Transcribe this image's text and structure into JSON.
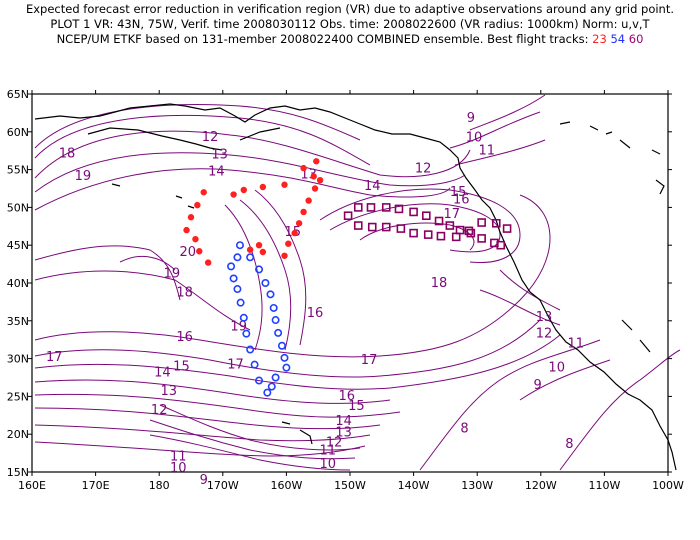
{
  "header": {
    "line1": "Expected forecast error reduction in verification region (VR) due to adaptive observations around any grid point.",
    "line2": "PLOT 1 VR: 43N, 75W, Verif. time 2008030112 Obs. time: 2008022600 (VR radius: 1000km) Norm: u,v,T",
    "line3_prefix": "NCEP/UM ETKF based on 131-member 2008022400 COMBINED ensemble.  Best flight tracks: ",
    "track_red": "23",
    "track_blue": "54",
    "track_purple": "60"
  },
  "axes": {
    "lat_labels": [
      "65N",
      "60N",
      "55N",
      "50N",
      "45N",
      "40N",
      "35N",
      "30N",
      "25N",
      "20N",
      "15N"
    ],
    "lon_labels": [
      "160E",
      "170E",
      "180",
      "170W",
      "160W",
      "150W",
      "140W",
      "130W",
      "120W",
      "110W",
      "100W"
    ]
  },
  "contour_labels": [
    {
      "t": "9",
      "x": -131,
      "y": 61.3
    },
    {
      "t": "10",
      "x": -130.5,
      "y": 58.7
    },
    {
      "t": "11",
      "x": -128.5,
      "y": 57.0
    },
    {
      "t": "12",
      "x": -172,
      "y": 58.8
    },
    {
      "t": "12",
      "x": -138.5,
      "y": 54.6
    },
    {
      "t": "13",
      "x": -170.5,
      "y": 56.5
    },
    {
      "t": "13",
      "x": -156.5,
      "y": 53.8
    },
    {
      "t": "14",
      "x": -171,
      "y": 54.2
    },
    {
      "t": "14",
      "x": -146.5,
      "y": 52.3
    },
    {
      "t": "15",
      "x": -133,
      "y": 51.5
    },
    {
      "t": "16",
      "x": -132.5,
      "y": 50.5
    },
    {
      "t": "17",
      "x": -134,
      "y": 48.6
    },
    {
      "t": "18",
      "x": -136,
      "y": 39.5
    },
    {
      "t": "18",
      "x": -176,
      "y": 38.2
    },
    {
      "t": "18",
      "x": 165.5,
      "y": 56.6
    },
    {
      "t": "19",
      "x": 168,
      "y": 53.6
    },
    {
      "t": "19",
      "x": -178,
      "y": 40.7
    },
    {
      "t": "19",
      "x": -167.5,
      "y": 33.7
    },
    {
      "t": "20",
      "x": -175.5,
      "y": 43.6
    },
    {
      "t": "16",
      "x": -176,
      "y": 32.3
    },
    {
      "t": "17",
      "x": 163.5,
      "y": 29.7
    },
    {
      "t": "16",
      "x": -155.5,
      "y": 35.5
    },
    {
      "t": "17",
      "x": -168,
      "y": 28.7
    },
    {
      "t": "15",
      "x": -159,
      "y": 46.2
    },
    {
      "t": "15",
      "x": -176.5,
      "y": 28.4
    },
    {
      "t": "14",
      "x": -179.5,
      "y": 27.6
    },
    {
      "t": "13",
      "x": -178.5,
      "y": 25.2
    },
    {
      "t": "12",
      "x": -180,
      "y": 22.7
    },
    {
      "t": "11",
      "x": -177,
      "y": 16.5
    },
    {
      "t": "10",
      "x": -177,
      "y": 15.0
    },
    {
      "t": "9",
      "x": -173,
      "y": 13.4
    },
    {
      "t": "17",
      "x": -147,
      "y": 29.3
    },
    {
      "t": "16",
      "x": -150.5,
      "y": 24.5
    },
    {
      "t": "15",
      "x": -149,
      "y": 23.2
    },
    {
      "t": "14",
      "x": -151,
      "y": 21.2
    },
    {
      "t": "13",
      "x": -151,
      "y": 19.7
    },
    {
      "t": "12",
      "x": -152.5,
      "y": 18.4
    },
    {
      "t": "11",
      "x": -153.5,
      "y": 17.3
    },
    {
      "t": "10",
      "x": -153.5,
      "y": 15.5
    },
    {
      "t": "8",
      "x": -132,
      "y": 20.2
    },
    {
      "t": "8",
      "x": -115.5,
      "y": 18.2
    },
    {
      "t": "9",
      "x": -120.5,
      "y": 26.0
    },
    {
      "t": "10",
      "x": -117.5,
      "y": 28.3
    },
    {
      "t": "11",
      "x": -114.5,
      "y": 31.5
    },
    {
      "t": "12",
      "x": -119.5,
      "y": 32.8
    },
    {
      "t": "13",
      "x": -119.5,
      "y": 35.0
    }
  ],
  "tracks": {
    "red": {
      "color": "#ff2020",
      "points": [
        [
          -155.3,
          56.1
        ],
        [
          -157.3,
          55.2
        ],
        [
          -155.7,
          54.1
        ],
        [
          -160.3,
          53.0
        ],
        [
          -163.7,
          52.7
        ],
        [
          -166.7,
          52.3
        ],
        [
          -168.3,
          51.7
        ],
        [
          -173,
          52.0
        ],
        [
          -174,
          50.3
        ],
        [
          -175,
          48.7
        ],
        [
          -175.7,
          47.0
        ],
        [
          -174.3,
          45.8
        ],
        [
          -173.7,
          44.2
        ],
        [
          -172.3,
          42.7
        ],
        [
          -165.7,
          44.4
        ],
        [
          -164.3,
          45.0
        ],
        [
          -163.7,
          44.1
        ],
        [
          -160.3,
          43.6
        ],
        [
          -159.7,
          45.2
        ],
        [
          -158.7,
          46.6
        ],
        [
          -158,
          47.9
        ],
        [
          -157.3,
          49.4
        ],
        [
          -156.5,
          50.9
        ],
        [
          -155.5,
          52.5
        ],
        [
          -154.7,
          53.6
        ]
      ]
    },
    "blue": {
      "color": "#2040ff",
      "points": [
        [
          -167.3,
          45.0
        ],
        [
          -165.7,
          43.4
        ],
        [
          -164.3,
          41.8
        ],
        [
          -163.3,
          40.0
        ],
        [
          -162.5,
          38.5
        ],
        [
          -162,
          36.7
        ],
        [
          -161.7,
          35.1
        ],
        [
          -161.3,
          33.4
        ],
        [
          -160.7,
          31.7
        ],
        [
          -160.3,
          30.1
        ],
        [
          -160,
          28.8
        ],
        [
          -161.7,
          27.5
        ],
        [
          -162.3,
          26.3
        ],
        [
          -163,
          25.5
        ],
        [
          -164.3,
          27.1
        ],
        [
          -165,
          29.2
        ],
        [
          -165.7,
          31.2
        ],
        [
          -166.3,
          33.3
        ],
        [
          -166.7,
          35.4
        ],
        [
          -167.2,
          37.4
        ],
        [
          -167.7,
          39.2
        ],
        [
          -168.3,
          40.6
        ],
        [
          -168.7,
          42.2
        ],
        [
          -167.7,
          43.4
        ]
      ]
    },
    "purple": {
      "color": "#8a0060",
      "points": [
        [
          -150.3,
          48.9
        ],
        [
          -148.7,
          50.0
        ],
        [
          -146.7,
          50.0
        ],
        [
          -144.3,
          50.0
        ],
        [
          -142.3,
          49.8
        ],
        [
          -140,
          49.4
        ],
        [
          -138,
          48.9
        ],
        [
          -136,
          48.2
        ],
        [
          -134.3,
          47.6
        ],
        [
          -132.7,
          47.0
        ],
        [
          -131,
          46.6
        ],
        [
          -129.3,
          45.9
        ],
        [
          -127.3,
          45.3
        ],
        [
          -126.3,
          45.0
        ],
        [
          -125.3,
          47.2
        ],
        [
          -127,
          47.9
        ],
        [
          -129.3,
          48.0
        ],
        [
          -131.3,
          46.9
        ],
        [
          -133.3,
          46.1
        ],
        [
          -135.7,
          46.2
        ],
        [
          -137.7,
          46.4
        ],
        [
          -140,
          46.6
        ],
        [
          -142,
          47.2
        ],
        [
          -144.3,
          47.4
        ],
        [
          -146.5,
          47.4
        ],
        [
          -148.7,
          47.6
        ]
      ]
    }
  },
  "colors": {
    "contour": "#7a0a7a",
    "coast": "#000000",
    "frame": "#000000"
  }
}
